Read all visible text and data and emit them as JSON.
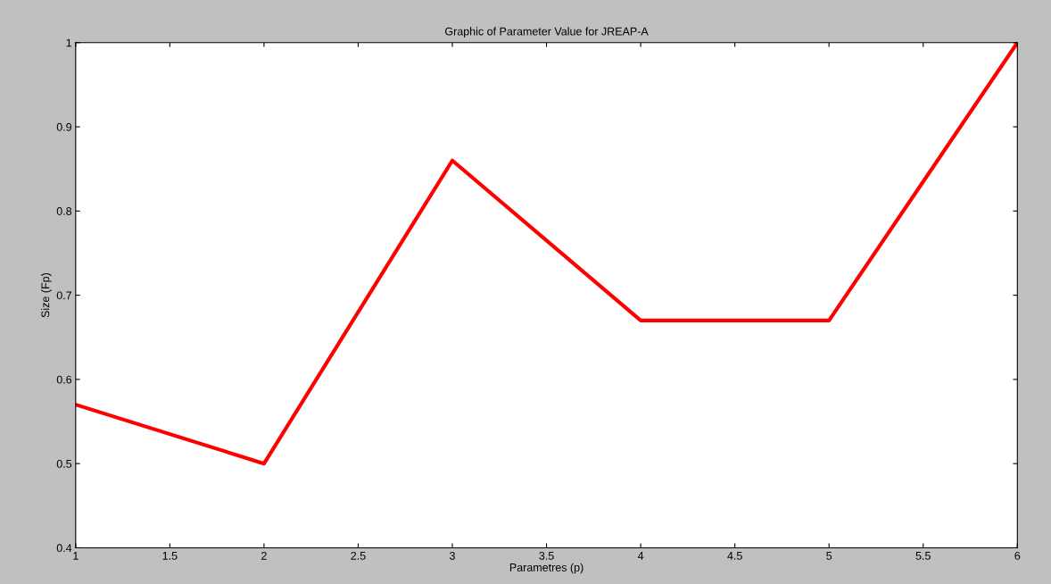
{
  "chart_data": {
    "type": "line",
    "title": "Graphic of Parameter Value for JREAP-A",
    "xlabel": "Parametres (p)",
    "ylabel": "Size (Fp)",
    "x": [
      1,
      2,
      3,
      4,
      5,
      6
    ],
    "series": [
      {
        "color": "#ff0000",
        "values": [
          0.57,
          0.5,
          0.86,
          0.67,
          0.67,
          1.0
        ]
      }
    ],
    "xlim": [
      1,
      6
    ],
    "xticks": [
      1,
      1.5,
      2,
      2.5,
      3,
      3.5,
      4,
      4.5,
      5,
      5.5,
      6
    ],
    "ylim": [
      0.4,
      1
    ],
    "yticks": [
      0.4,
      0.5,
      0.6,
      0.7,
      0.8,
      0.9,
      1
    ],
    "grid": false,
    "legend": false,
    "marker": "none",
    "line_style": "solid"
  }
}
